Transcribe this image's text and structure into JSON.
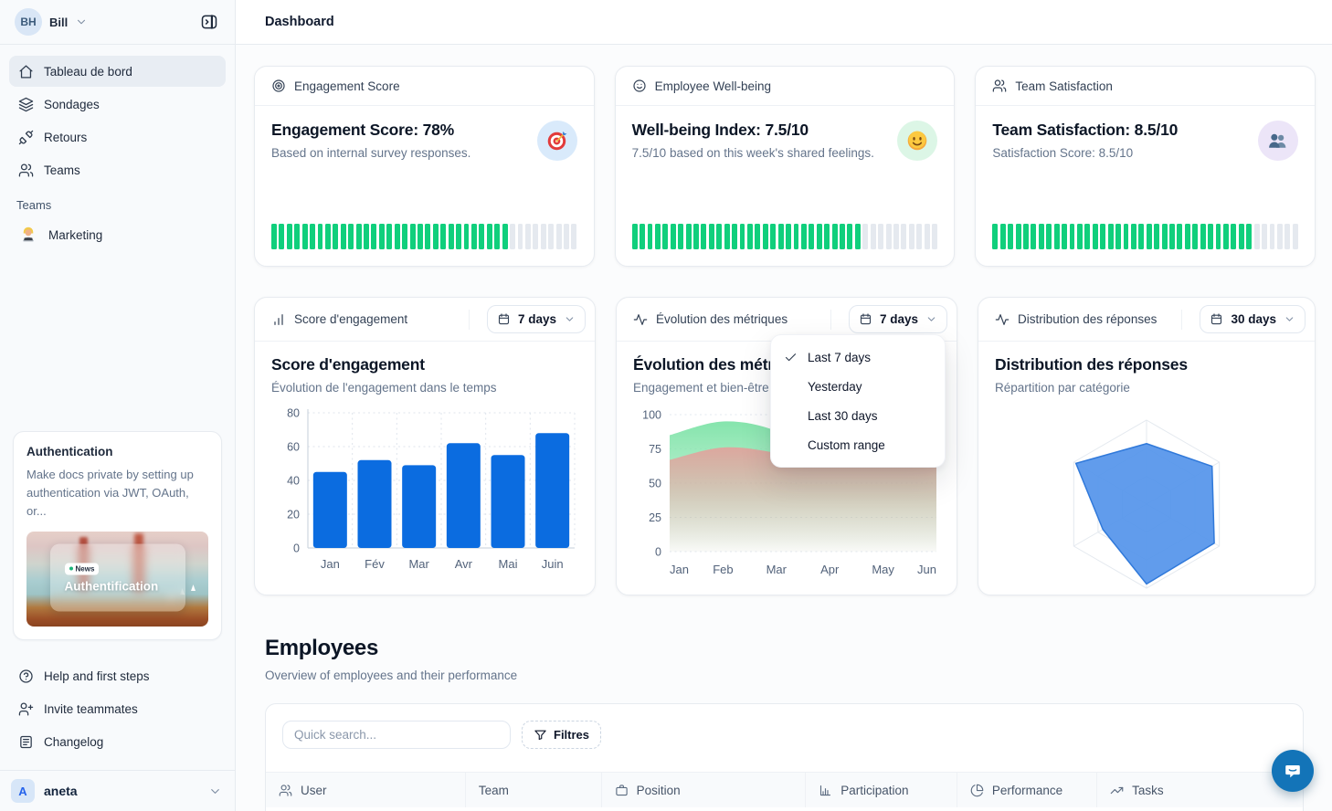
{
  "sidebar": {
    "user": {
      "initials": "BH",
      "name": "Bill"
    },
    "nav": [
      {
        "label": "Tableau de bord",
        "active": true
      },
      {
        "label": "Sondages",
        "active": false
      },
      {
        "label": "Retours",
        "active": false
      },
      {
        "label": "Teams",
        "active": false
      }
    ],
    "teams_section": {
      "label": "Teams",
      "items": [
        {
          "label": "Marketing"
        }
      ]
    },
    "promo_card": {
      "title": "Authentication",
      "body": "Make docs private by setting up authentication via JWT, OAuth, or...",
      "badge": "News",
      "image_caption": "Authentification"
    },
    "footer_nav": [
      {
        "label": "Help and first steps"
      },
      {
        "label": "Invite teammates"
      },
      {
        "label": "Changelog"
      }
    ],
    "workspace": {
      "initial": "A",
      "name": "aneta"
    }
  },
  "header": {
    "title": "Dashboard"
  },
  "stat_cards": [
    {
      "header": "Engagement Score",
      "title": "Engagement Score: 78%",
      "subtitle": "Based on internal survey responses.",
      "progress_percent": 78,
      "icon_bg": "#d9eafb"
    },
    {
      "header": "Employee Well-being",
      "title": "Well-being Index: 7.5/10",
      "subtitle": "7.5/10 based on this week's shared feelings.",
      "progress_percent": 75,
      "icon_bg": "#dcf6e6"
    },
    {
      "header": "Team Satisfaction",
      "title": "Team Satisfaction: 8.5/10",
      "subtitle": "Satisfaction Score: 8.5/10",
      "progress_percent": 85,
      "icon_bg": "#ece5f8"
    }
  ],
  "chart_cards": [
    {
      "header": "Score d'engagement",
      "range": "7 days",
      "title": "Score d'engagement",
      "subtitle": "Évolution de l'engagement dans le temps"
    },
    {
      "header": "Évolution des métriques",
      "range": "7 days",
      "title": "Évolution des métriques",
      "subtitle": "Engagement et bien-être"
    },
    {
      "header": "Distribution des réponses",
      "range": "30 days",
      "title": "Distribution des réponses",
      "subtitle": "Répartition par catégorie"
    }
  ],
  "dropdown_menu": {
    "items": [
      {
        "label": "Last 7 days",
        "checked": true
      },
      {
        "label": "Yesterday",
        "checked": false
      },
      {
        "label": "Last 30 days",
        "checked": false
      },
      {
        "label": "Custom range",
        "checked": false
      }
    ]
  },
  "employees": {
    "title": "Employees",
    "subtitle": "Overview of employees and their performance",
    "search_placeholder": "Quick search...",
    "filter_label": "Filtres",
    "columns": [
      {
        "label": "User"
      },
      {
        "label": "Team"
      },
      {
        "label": "Position"
      },
      {
        "label": "Participation"
      },
      {
        "label": "Performance"
      },
      {
        "label": "Tasks"
      }
    ]
  },
  "colors": {
    "progress_green": "#10cf7c",
    "bar_blue": "#0b6ce0",
    "radar_blue": "#5494ea",
    "area_green": "#7fe3a8",
    "area_red": "#e89c9a",
    "chat_blue": "#1374b8"
  },
  "chart_data": [
    {
      "type": "bar",
      "title": "Score d'engagement",
      "subtitle": "Évolution de l'engagement dans le temps",
      "categories": [
        "Jan",
        "Fév",
        "Mar",
        "Avr",
        "Mai",
        "Juin"
      ],
      "values": [
        45,
        52,
        49,
        62,
        55,
        68
      ],
      "ylim": [
        0,
        80
      ],
      "yticks": [
        0,
        20,
        40,
        60,
        80
      ],
      "grid": "dotted",
      "color": "#0b6ce0"
    },
    {
      "type": "area",
      "title": "Évolution des métriques",
      "subtitle": "Engagement et bien-être",
      "categories": [
        "Jan",
        "Feb",
        "Mar",
        "Apr",
        "May",
        "Jun"
      ],
      "series": [
        {
          "name": "Engagement",
          "values": [
            85,
            95,
            88,
            65,
            78,
            82
          ],
          "color": "#7fe3a8"
        },
        {
          "name": "Bien-être",
          "values": [
            67,
            76,
            72,
            62,
            68,
            74
          ],
          "color": "#e89c9a"
        }
      ],
      "ylim": [
        0,
        100
      ],
      "yticks": [
        0,
        25,
        50,
        75,
        100
      ],
      "grid": "dotted"
    },
    {
      "type": "radar",
      "title": "Distribution des réponses",
      "subtitle": "Répartition par catégorie",
      "axes_count": 6,
      "max": 100,
      "values": [
        72,
        90,
        93,
        95,
        60,
        97
      ],
      "levels": 3,
      "color": "#5494ea"
    }
  ]
}
